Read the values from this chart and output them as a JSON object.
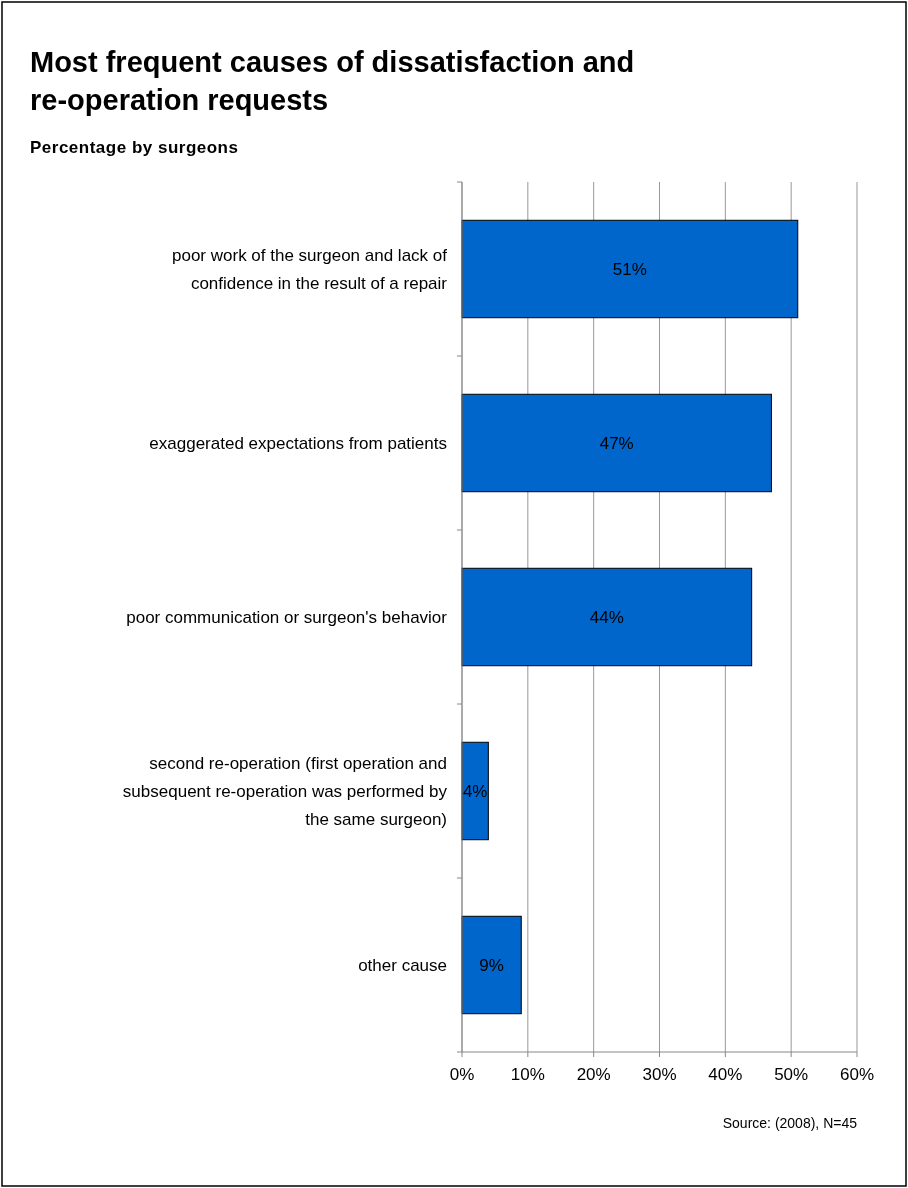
{
  "chart_data": {
    "type": "bar",
    "orientation": "horizontal",
    "title": "Most frequent causes of dissatisfaction and re-operation requests",
    "subtitle": "Percentage by surgeons",
    "categories": [
      "poor work of the surgeon and lack of confidence in the result of a repair",
      "exaggerated expectations from patients",
      "poor communication or surgeon's behavior",
      "second re-operation (first operation and subsequent re-operation was performed by the same surgeon)",
      "other cause"
    ],
    "values": [
      51,
      47,
      44,
      4,
      9
    ],
    "value_labels": [
      "51%",
      "47%",
      "44%",
      "4%",
      "9%"
    ],
    "color": "#0066cc",
    "xlim": [
      0,
      60
    ],
    "xticks": [
      {
        "value": 0,
        "label": "0%"
      },
      {
        "value": 10,
        "label": "10%"
      },
      {
        "value": 20,
        "label": "20%"
      },
      {
        "value": 30,
        "label": "30%"
      },
      {
        "value": 40,
        "label": "40%"
      },
      {
        "value": 50,
        "label": "50%"
      },
      {
        "value": 60,
        "label": "60%"
      }
    ],
    "grid": "x",
    "annotations": [
      "Source: (2008), N=45"
    ]
  }
}
